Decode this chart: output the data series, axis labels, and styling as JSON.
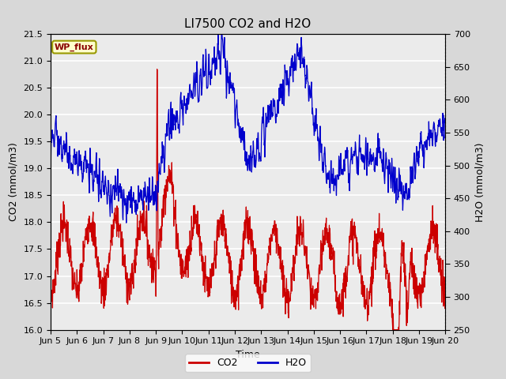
{
  "title": "LI7500 CO2 and H2O",
  "xlabel": "Time",
  "ylabel_left": "CO2 (mmol/m3)",
  "ylabel_right": "H2O (mmol/m3)",
  "xlim_days": [
    5,
    20
  ],
  "ylim_co2": [
    16.0,
    21.5
  ],
  "ylim_h2o": [
    250,
    700
  ],
  "yticks_co2": [
    16.0,
    16.5,
    17.0,
    17.5,
    18.0,
    18.5,
    19.0,
    19.5,
    20.0,
    20.5,
    21.0,
    21.5
  ],
  "yticks_h2o": [
    250,
    300,
    350,
    400,
    450,
    500,
    550,
    600,
    650,
    700
  ],
  "xtick_labels": [
    "Jun 5",
    "Jun 6",
    "Jun 7",
    "Jun 8",
    "Jun 9",
    "Jun 10",
    "Jun 11",
    "Jun 12",
    "Jun 13",
    "Jun 14",
    "Jun 15",
    "Jun 16",
    "Jun 17",
    "Jun 18",
    "Jun 19",
    "Jun 20"
  ],
  "xtick_positions": [
    5,
    6,
    7,
    8,
    9,
    10,
    11,
    12,
    13,
    14,
    15,
    16,
    17,
    18,
    19,
    20
  ],
  "co2_color": "#cc0000",
  "h2o_color": "#0000cc",
  "background_color": "#d8d8d8",
  "plot_bg_color": "#ebebeb",
  "legend_label": "WP_flux",
  "legend_box_color": "#ffffcc",
  "legend_border_color": "#999900",
  "grid_color": "white",
  "title_fontsize": 11,
  "label_fontsize": 9,
  "tick_fontsize": 8,
  "linewidth": 0.9
}
